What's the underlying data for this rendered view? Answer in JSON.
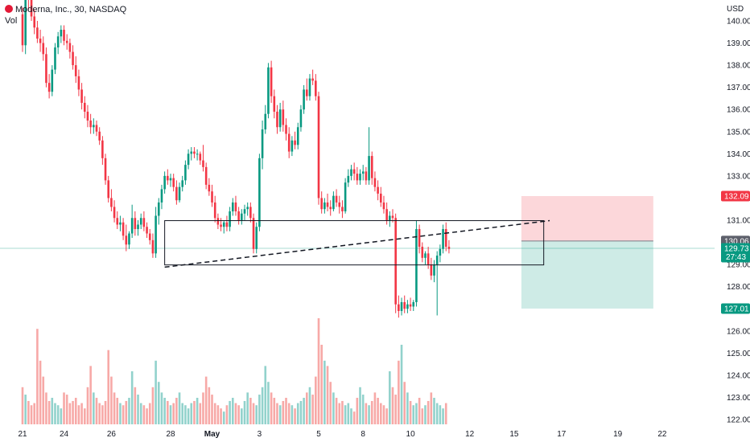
{
  "header": {
    "symbol_title": "Moderna, Inc., 30, NASDAQ",
    "volume_label": "Vol",
    "currency": "USD"
  },
  "chart_data": {
    "type": "candlestick",
    "title": "Moderna, Inc., 30, NASDAQ",
    "y_ticks": [
      122,
      123,
      124,
      125,
      126,
      127,
      128,
      129,
      130,
      131,
      132,
      133,
      134,
      135,
      136,
      137,
      138,
      139,
      140
    ],
    "y_range": [
      121.7,
      140.5
    ],
    "x_tick_labels": [
      {
        "label": "21",
        "bar": 0
      },
      {
        "label": "24",
        "bar": 14
      },
      {
        "label": "26",
        "bar": 30
      },
      {
        "label": "28",
        "bar": 50
      },
      {
        "label": "May",
        "bar": 64
      },
      {
        "label": "3",
        "bar": 80
      },
      {
        "label": "5",
        "bar": 100
      },
      {
        "label": "8",
        "bar": 115
      },
      {
        "label": "10",
        "bar": 131
      },
      {
        "label": "12",
        "bar": 151
      },
      {
        "label": "15",
        "bar": 166
      },
      {
        "label": "17",
        "bar": 182
      },
      {
        "label": "19",
        "bar": 201
      },
      {
        "label": "22",
        "bar": 216
      }
    ],
    "price_tags": [
      {
        "label": "132.09",
        "value": 132.09,
        "color": "#f23645"
      },
      {
        "label": "130.06",
        "value": 130.06,
        "color": "#5d606b"
      },
      {
        "label": "129.73",
        "sub": "27:43",
        "value": 129.73,
        "color": "#089981"
      },
      {
        "label": "127.01",
        "value": 127.01,
        "color": "#089981"
      }
    ],
    "current_price": 129.73,
    "colors": {
      "up": "#089981",
      "down": "#f23645",
      "up_vol": "#92d2cc",
      "down_vol": "#f7a9a7"
    },
    "candles": [
      [
        140.3,
        140.6,
        138.6,
        138.9
      ],
      [
        138.9,
        142.0,
        138.5,
        141.4
      ],
      [
        141.4,
        141.8,
        140.5,
        141.0
      ],
      [
        141.0,
        141.3,
        140.0,
        140.2
      ],
      [
        140.2,
        140.5,
        139.4,
        139.7
      ],
      [
        139.7,
        140.0,
        139.0,
        139.2
      ],
      [
        139.2,
        139.6,
        138.6,
        139.0
      ],
      [
        139.0,
        139.3,
        138.2,
        138.5
      ],
      [
        138.5,
        138.8,
        137.0,
        137.2
      ],
      [
        137.2,
        137.6,
        136.5,
        136.8
      ],
      [
        136.8,
        138.0,
        136.6,
        137.8
      ],
      [
        137.8,
        139.0,
        137.6,
        138.8
      ],
      [
        138.8,
        139.5,
        138.5,
        139.3
      ],
      [
        139.3,
        139.8,
        139.0,
        139.6
      ],
      [
        139.6,
        139.8,
        138.9,
        139.1
      ],
      [
        139.1,
        139.4,
        138.7,
        139.0
      ],
      [
        139.0,
        139.2,
        138.3,
        138.6
      ],
      [
        138.6,
        138.9,
        137.8,
        138.0
      ],
      [
        138.0,
        138.4,
        137.2,
        137.5
      ],
      [
        137.5,
        137.8,
        136.6,
        136.9
      ],
      [
        136.9,
        137.2,
        136.0,
        136.3
      ],
      [
        136.3,
        136.6,
        135.6,
        135.9
      ],
      [
        135.9,
        136.2,
        135.2,
        135.5
      ],
      [
        135.5,
        135.8,
        134.9,
        135.2
      ],
      [
        135.2,
        135.6,
        134.9,
        135.3
      ],
      [
        135.3,
        135.5,
        134.8,
        135.0
      ],
      [
        135.0,
        135.2,
        134.4,
        134.6
      ],
      [
        134.6,
        134.8,
        133.5,
        133.8
      ],
      [
        133.8,
        134.0,
        132.6,
        132.8
      ],
      [
        132.8,
        133.0,
        131.8,
        132.0
      ],
      [
        132.0,
        132.4,
        131.4,
        131.6
      ],
      [
        131.6,
        131.9,
        130.9,
        131.1
      ],
      [
        131.1,
        131.4,
        130.6,
        130.8
      ],
      [
        130.8,
        131.2,
        130.5,
        130.9
      ],
      [
        130.9,
        131.1,
        130.1,
        130.3
      ],
      [
        130.3,
        130.8,
        129.6,
        129.9
      ],
      [
        129.9,
        130.5,
        129.7,
        130.4
      ],
      [
        130.4,
        131.7,
        130.2,
        131.1
      ],
      [
        131.1,
        131.4,
        130.3,
        130.6
      ],
      [
        130.6,
        131.0,
        130.3,
        130.8
      ],
      [
        130.8,
        131.3,
        130.6,
        131.1
      ],
      [
        131.1,
        131.4,
        130.5,
        130.7
      ],
      [
        130.7,
        130.9,
        130.2,
        130.4
      ],
      [
        130.4,
        130.6,
        129.9,
        130.1
      ],
      [
        130.1,
        130.4,
        129.3,
        129.5
      ],
      [
        129.5,
        131.6,
        129.3,
        131.2
      ],
      [
        131.2,
        132.0,
        130.8,
        131.8
      ],
      [
        131.8,
        132.6,
        131.5,
        132.4
      ],
      [
        132.4,
        133.2,
        132.2,
        133.0
      ],
      [
        133.0,
        133.3,
        132.6,
        132.8
      ],
      [
        132.8,
        133.1,
        132.5,
        132.9
      ],
      [
        132.9,
        133.1,
        132.3,
        132.5
      ],
      [
        132.5,
        132.8,
        131.7,
        131.9
      ],
      [
        131.9,
        132.7,
        131.8,
        132.5
      ],
      [
        132.5,
        133.0,
        132.3,
        132.8
      ],
      [
        132.8,
        133.7,
        132.6,
        133.5
      ],
      [
        133.5,
        134.2,
        133.3,
        134.0
      ],
      [
        134.0,
        134.3,
        133.7,
        134.1
      ],
      [
        134.1,
        134.3,
        133.8,
        134.0
      ],
      [
        134.0,
        134.2,
        133.7,
        134.0
      ],
      [
        134.0,
        134.1,
        133.5,
        133.7
      ],
      [
        133.7,
        134.4,
        133.2,
        133.4
      ],
      [
        133.4,
        133.6,
        132.4,
        132.6
      ],
      [
        132.6,
        132.9,
        132.1,
        132.3
      ],
      [
        132.3,
        132.6,
        131.6,
        131.8
      ],
      [
        131.8,
        132.1,
        130.9,
        131.1
      ],
      [
        131.1,
        131.3,
        130.6,
        130.8
      ],
      [
        130.8,
        131.1,
        130.5,
        130.7
      ],
      [
        130.7,
        131.0,
        130.4,
        130.9
      ],
      [
        130.9,
        131.2,
        130.5,
        130.7
      ],
      [
        130.7,
        131.6,
        130.5,
        131.4
      ],
      [
        131.4,
        132.0,
        131.2,
        131.8
      ],
      [
        131.8,
        132.1,
        131.2,
        131.4
      ],
      [
        131.4,
        131.6,
        130.8,
        131.0
      ],
      [
        131.0,
        131.5,
        130.8,
        131.3
      ],
      [
        131.3,
        131.7,
        131.0,
        131.5
      ],
      [
        131.5,
        131.8,
        131.2,
        131.6
      ],
      [
        131.6,
        131.8,
        130.9,
        131.1
      ],
      [
        131.1,
        131.3,
        129.5,
        129.7
      ],
      [
        129.7,
        130.9,
        129.5,
        130.7
      ],
      [
        130.7,
        134.0,
        130.5,
        133.8
      ],
      [
        133.8,
        135.5,
        133.3,
        135.1
      ],
      [
        135.1,
        136.2,
        134.9,
        135.8
      ],
      [
        135.8,
        138.1,
        135.6,
        137.9
      ],
      [
        137.9,
        138.2,
        136.3,
        136.6
      ],
      [
        136.6,
        136.9,
        135.6,
        135.9
      ],
      [
        135.9,
        136.2,
        134.9,
        135.2
      ],
      [
        135.2,
        136.3,
        135.0,
        136.0
      ],
      [
        136.0,
        136.4,
        135.0,
        135.3
      ],
      [
        135.3,
        135.6,
        134.6,
        134.9
      ],
      [
        134.9,
        135.2,
        133.8,
        134.1
      ],
      [
        134.1,
        134.8,
        133.9,
        134.6
      ],
      [
        134.6,
        135.0,
        134.2,
        134.4
      ],
      [
        134.4,
        135.4,
        134.2,
        135.2
      ],
      [
        135.2,
        136.2,
        135.0,
        136.0
      ],
      [
        136.0,
        137.1,
        135.8,
        136.9
      ],
      [
        136.9,
        137.4,
        136.4,
        136.6
      ],
      [
        136.6,
        137.6,
        136.4,
        137.4
      ],
      [
        137.4,
        137.8,
        137.1,
        137.3
      ],
      [
        137.3,
        137.6,
        136.4,
        136.6
      ],
      [
        136.6,
        136.8,
        131.7,
        132.0
      ],
      [
        132.0,
        132.3,
        131.3,
        131.5
      ],
      [
        131.5,
        132.0,
        131.3,
        131.8
      ],
      [
        131.8,
        132.2,
        131.4,
        131.6
      ],
      [
        131.6,
        131.9,
        131.2,
        131.5
      ],
      [
        131.5,
        132.3,
        131.4,
        132.1
      ],
      [
        132.1,
        132.4,
        131.6,
        131.8
      ],
      [
        131.8,
        132.1,
        131.3,
        131.6
      ],
      [
        131.6,
        131.9,
        131.1,
        131.4
      ],
      [
        131.4,
        132.9,
        131.3,
        132.7
      ],
      [
        132.7,
        133.3,
        132.5,
        133.0
      ],
      [
        133.0,
        133.5,
        132.8,
        133.3
      ],
      [
        133.3,
        133.6,
        132.8,
        133.1
      ],
      [
        133.1,
        133.4,
        132.6,
        132.8
      ],
      [
        132.8,
        133.3,
        132.6,
        133.1
      ],
      [
        133.1,
        133.5,
        132.8,
        133.2
      ],
      [
        133.2,
        133.4,
        132.6,
        132.8
      ],
      [
        132.8,
        135.2,
        132.6,
        133.9
      ],
      [
        133.9,
        134.1,
        132.6,
        132.9
      ],
      [
        132.9,
        133.2,
        132.3,
        132.5
      ],
      [
        132.5,
        132.8,
        131.9,
        132.2
      ],
      [
        132.2,
        132.5,
        131.6,
        131.8
      ],
      [
        131.8,
        132.1,
        131.3,
        131.5
      ],
      [
        131.5,
        131.8,
        130.8,
        131.0
      ],
      [
        131.0,
        131.4,
        130.7,
        131.2
      ],
      [
        131.2,
        131.5,
        130.9,
        131.1
      ],
      [
        131.1,
        131.3,
        126.8,
        127.2
      ],
      [
        127.2,
        127.6,
        126.6,
        126.9
      ],
      [
        126.9,
        127.5,
        126.7,
        127.3
      ],
      [
        127.3,
        127.6,
        126.8,
        127.0
      ],
      [
        127.0,
        127.4,
        126.8,
        127.2
      ],
      [
        127.2,
        127.5,
        126.9,
        127.1
      ],
      [
        127.1,
        127.4,
        126.9,
        127.3
      ],
      [
        127.3,
        131.0,
        127.1,
        130.6
      ],
      [
        130.6,
        130.8,
        129.5,
        129.8
      ],
      [
        129.8,
        130.0,
        129.1,
        129.3
      ],
      [
        129.3,
        129.6,
        129.0,
        129.5
      ],
      [
        129.5,
        129.8,
        128.8,
        129.0
      ],
      [
        129.0,
        129.3,
        128.3,
        128.5
      ],
      [
        128.5,
        129.2,
        128.2,
        129.0
      ],
      [
        129.0,
        129.6,
        126.7,
        129.4
      ],
      [
        129.4,
        129.9,
        129.1,
        129.7
      ],
      [
        129.7,
        130.8,
        129.5,
        130.6
      ],
      [
        130.6,
        130.9,
        129.6,
        129.8
      ],
      [
        129.8,
        130.1,
        129.5,
        129.7
      ]
    ],
    "volume": [
      0.35,
      0.28,
      0.22,
      0.18,
      0.2,
      0.9,
      0.6,
      0.45,
      0.3,
      0.22,
      0.25,
      0.2,
      0.18,
      0.15,
      0.3,
      0.28,
      0.2,
      0.22,
      0.25,
      0.18,
      0.2,
      0.15,
      0.35,
      0.55,
      0.3,
      0.25,
      0.2,
      0.18,
      0.22,
      0.7,
      0.45,
      0.3,
      0.25,
      0.2,
      0.18,
      0.22,
      0.25,
      0.5,
      0.35,
      0.28,
      0.2,
      0.18,
      0.15,
      0.2,
      0.35,
      0.6,
      0.4,
      0.3,
      0.25,
      0.22,
      0.18,
      0.2,
      0.25,
      0.3,
      0.2,
      0.18,
      0.15,
      0.2,
      0.22,
      0.25,
      0.2,
      0.3,
      0.45,
      0.35,
      0.28,
      0.2,
      0.18,
      0.15,
      0.12,
      0.18,
      0.22,
      0.25,
      0.2,
      0.18,
      0.15,
      0.22,
      0.3,
      0.25,
      0.2,
      0.18,
      0.28,
      0.35,
      0.55,
      0.4,
      0.3,
      0.25,
      0.2,
      0.18,
      0.22,
      0.25,
      0.2,
      0.18,
      0.15,
      0.2,
      0.22,
      0.25,
      0.3,
      0.35,
      0.28,
      0.45,
      1.0,
      0.75,
      0.6,
      0.55,
      0.4,
      0.3,
      0.25,
      0.2,
      0.22,
      0.18,
      0.2,
      0.15,
      0.12,
      0.25,
      0.35,
      0.28,
      0.2,
      0.18,
      0.22,
      0.3,
      0.25,
      0.2,
      0.18,
      0.15,
      0.5,
      0.35,
      0.28,
      0.6,
      0.75,
      0.4,
      0.3,
      0.22,
      0.18,
      0.2,
      0.25,
      0.15,
      0.18,
      0.22,
      0.3,
      0.25,
      0.2,
      0.18,
      0.15,
      0.2
    ],
    "drawings": {
      "rectangle": {
        "bar_start": 48,
        "bar_end": 176,
        "top": 130.98,
        "bottom": 128.98
      },
      "trendline": {
        "bar_start": 48,
        "value_start": 128.88,
        "bar_end": 178,
        "value_end": 130.98
      },
      "position_box": {
        "bar_start": 169,
        "bar_end": 213,
        "stop": 132.09,
        "entry": 130.06,
        "target": 127.01
      }
    }
  }
}
